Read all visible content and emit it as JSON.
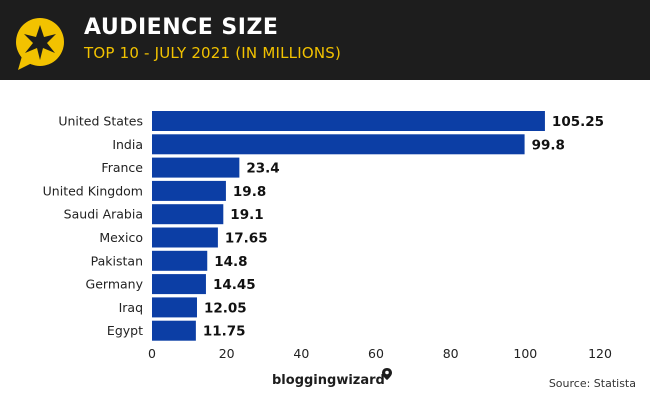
{
  "header": {
    "title": "AUDIENCE SIZE",
    "subtitle": "TOP 10 - JULY 2021 (IN MILLIONS)",
    "logo_icon": "speech-bubble-star-icon",
    "accent_color": "#f2c200",
    "background_color": "#1d1d1d"
  },
  "chart_data": {
    "type": "bar",
    "orientation": "horizontal",
    "categories": [
      "United States",
      "India",
      "France",
      "United Kingdom",
      "Saudi Arabia",
      "Mexico",
      "Pakistan",
      "Germany",
      "Iraq",
      "Egypt"
    ],
    "values": [
      105.25,
      99.8,
      23.4,
      19.8,
      19.1,
      17.65,
      14.8,
      14.45,
      12.05,
      11.75
    ],
    "value_labels": [
      "105.25",
      "99.8",
      "23.4",
      "19.8",
      "19.1",
      "17.65",
      "14.8",
      "14.45",
      "12.05",
      "11.75"
    ],
    "x_ticks": [
      "0",
      "20",
      "40",
      "60",
      "80",
      "100",
      "120"
    ],
    "xlim": [
      0,
      120
    ],
    "bar_color": "#0c3ea5",
    "grid": false
  },
  "footer": {
    "brand": "bloggingwizard",
    "source": "Source:  Statista"
  }
}
